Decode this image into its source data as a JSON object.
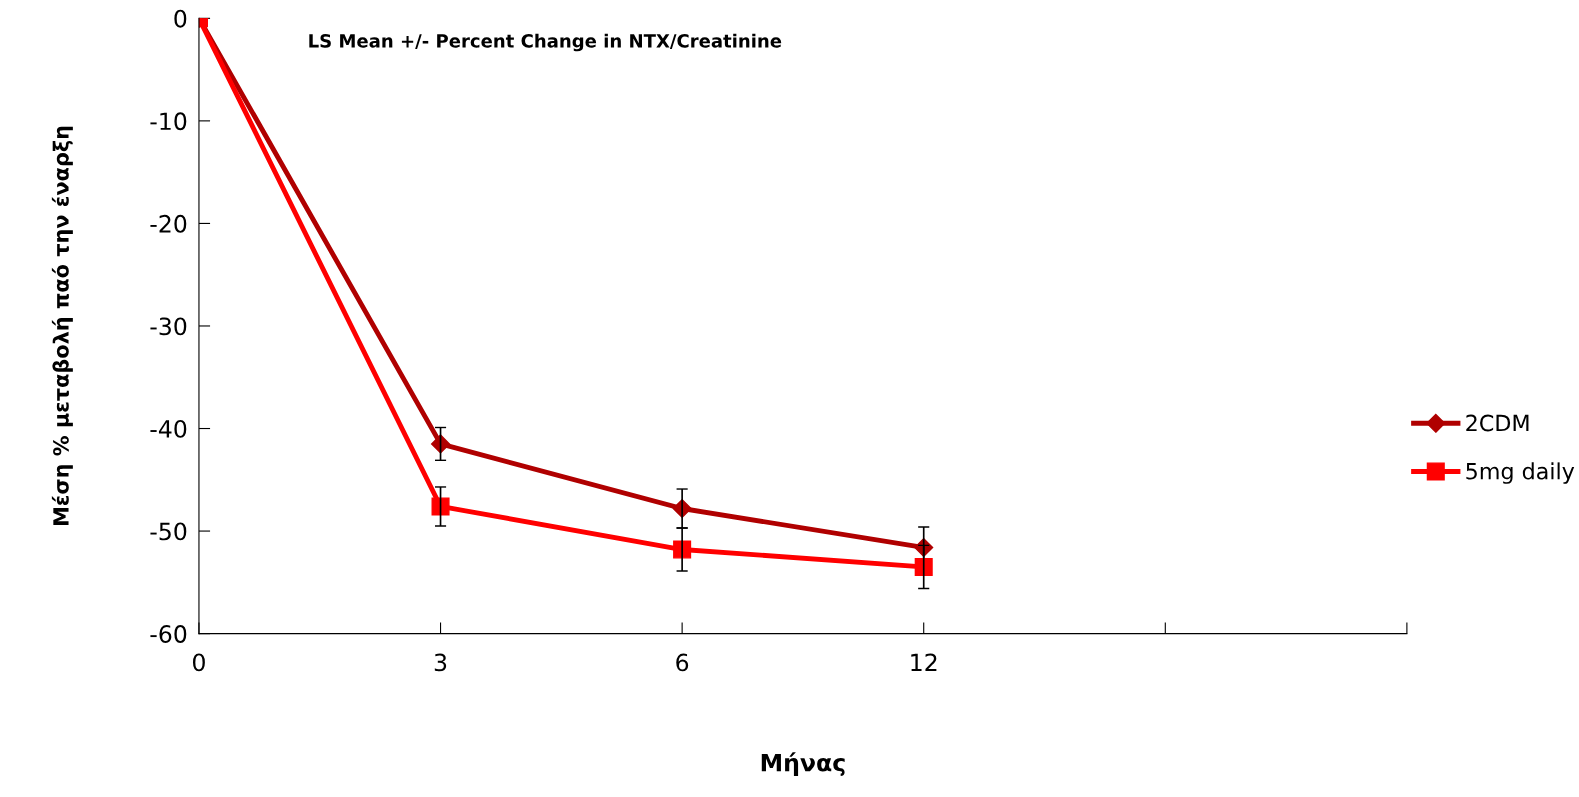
{
  "chart_data": {
    "type": "line",
    "xlabel": "Μήνας",
    "ylabel": "Μέση % μεταβολή παό την έναρξη",
    "annotations": [
      "LS Mean +/- Percent Change in NTX/Creatinine"
    ],
    "categories": [
      "0",
      "3",
      "6",
      "12",
      null,
      null
    ],
    "series": [
      {
        "name": "2CDM",
        "color": "#b00000",
        "marker": "diamond",
        "values": [
          0,
          -41.5,
          -47.8,
          -51.6,
          null,
          null
        ],
        "errors": [
          null,
          1.6,
          1.9,
          2.0,
          null,
          null
        ]
      },
      {
        "name": "5mg daily",
        "color": "#ff0000",
        "marker": "square",
        "values": [
          0,
          -47.6,
          -51.8,
          -53.5,
          null,
          null
        ],
        "errors": [
          null,
          1.9,
          2.1,
          2.1,
          null,
          null
        ]
      }
    ],
    "ylim": [
      -60,
      0
    ],
    "yticks": [
      -60,
      -50,
      -40,
      -30,
      -20,
      -10,
      0
    ],
    "grid": false,
    "legend": "right",
    "line_style": "solid"
  }
}
